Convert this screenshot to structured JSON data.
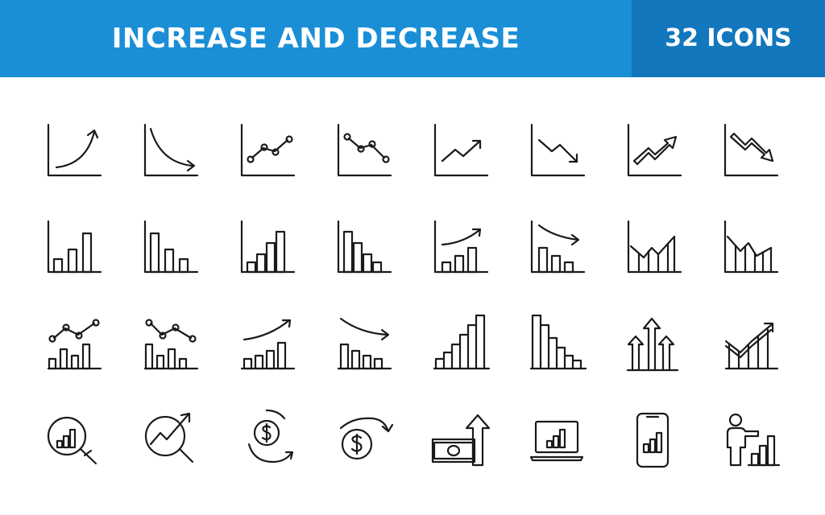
{
  "header": {
    "title": "INCREASE AND DECREASE",
    "count": "32 ICONS",
    "accent": "#1a8fd6",
    "accent_dark": "#1277bd"
  },
  "icons": [
    "curve-up-chart-icon",
    "curve-down-chart-icon",
    "line-points-up-chart-icon",
    "line-points-down-chart-icon",
    "zigzag-up-arrow-chart-icon",
    "zigzag-down-arrow-chart-icon",
    "thick-arrow-up-chart-icon",
    "thick-arrow-down-chart-icon",
    "bars-up-icon",
    "bars-down-icon",
    "bars-up-four-icon",
    "bars-down-four-icon",
    "bars-up-curve-arrow-icon",
    "bars-down-curve-arrow-icon",
    "zigzag-bars-up-icon",
    "zigzag-bars-down-icon",
    "line-points-bars-up-icon",
    "line-points-bars-down-icon",
    "arrow-curve-bars-up-icon",
    "arrow-curve-bars-down-icon",
    "stepped-bars-up-icon",
    "stepped-bars-down-icon",
    "triple-arrows-up-icon",
    "arrow-bars-house-up-icon",
    "magnifier-bar-chart-icon",
    "magnifier-trend-up-icon",
    "dollar-coin-cycle-icon",
    "dollar-coin-arrow-icon",
    "money-arrow-up-icon",
    "laptop-bar-chart-icon",
    "smartphone-bar-chart-icon",
    "person-bar-chart-icon"
  ]
}
